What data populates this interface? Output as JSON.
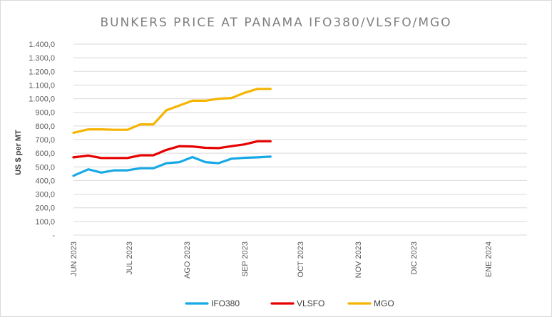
{
  "chart_data": {
    "type": "line",
    "title": "BUNKERS PRICE AT PANAMA IFO380/VLSFO/MGO",
    "xlabel": "",
    "ylabel": "US $ per MT",
    "ylim": [
      0,
      1400
    ],
    "yticks": [
      0,
      100,
      200,
      300,
      400,
      500,
      600,
      700,
      800,
      900,
      1000,
      1100,
      1200,
      1300,
      1400
    ],
    "ytick_labels": [
      "-",
      "100,0",
      "200,0",
      "300,0",
      "400,0",
      "500,0",
      "600,0",
      "700,0",
      "800,0",
      "900,0",
      "1.000,0",
      "1.100,0",
      "1.200,0",
      "1.300,0",
      "1.400,0"
    ],
    "x_range": [
      "2023-06-01",
      "2024-01-31"
    ],
    "x_tick_labels": [
      {
        "label": "JUN 2023",
        "date": "2023-06-01"
      },
      {
        "label": "JUL 2023",
        "date": "2023-07-01"
      },
      {
        "label": "AGO 2023",
        "date": "2023-08-01"
      },
      {
        "label": "SEP 2023",
        "date": "2023-09-01"
      },
      {
        "label": "OCT 2023",
        "date": "2023-10-01"
      },
      {
        "label": "NOV 2023",
        "date": "2023-11-01"
      },
      {
        "label": "DIC 2023",
        "date": "2023-12-01"
      },
      {
        "label": "ENE 2024",
        "date": "2024-01-10"
      }
    ],
    "x": [
      "2023-06-01",
      "2023-06-09",
      "2023-06-16",
      "2023-06-23",
      "2023-06-30",
      "2023-07-07",
      "2023-07-14",
      "2023-07-21",
      "2023-07-28",
      "2023-08-04",
      "2023-08-11",
      "2023-08-18",
      "2023-08-25",
      "2023-09-01",
      "2023-09-08",
      "2023-09-15",
      "2023-09-22"
    ],
    "series": [
      {
        "name": "IFO380",
        "color": "#17a9e6",
        "values": [
          435,
          482,
          458,
          475,
          475,
          490,
          490,
          527,
          535,
          572,
          535,
          527,
          560,
          567,
          570,
          575,
          575
        ]
      },
      {
        "name": "VLSFO",
        "color": "#e60000",
        "values": [
          570,
          583,
          565,
          565,
          565,
          585,
          585,
          625,
          652,
          650,
          640,
          638,
          652,
          665,
          688,
          688,
          688
        ]
      },
      {
        "name": "MGO",
        "color": "#f5b400",
        "values": [
          750,
          775,
          775,
          772,
          772,
          812,
          812,
          915,
          950,
          985,
          985,
          1000,
          1005,
          1043,
          1072,
          1072,
          1072
        ]
      }
    ],
    "series_end_index": 15,
    "legend_position": "bottom",
    "grid": true
  }
}
